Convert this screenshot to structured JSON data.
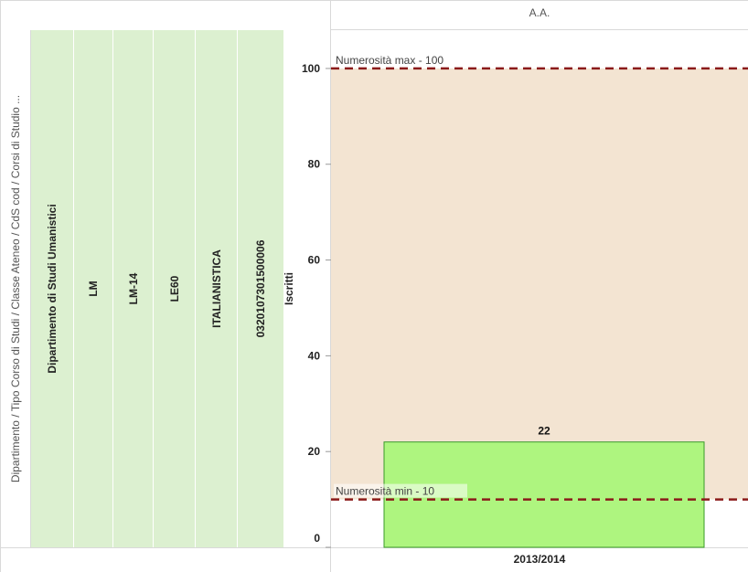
{
  "header": {
    "column_title": "A.A.",
    "row_dimensions_title": "Dipartimento  /  Tipo Corso di Studi  /  Classe Ateneo  /  CdS cod  /  Corsi di Studio ..."
  },
  "dimensions": [
    "Dipartimento di Studi Umanistici",
    "LM",
    "LM-14",
    "LE60",
    "ITALIANISTICA",
    "0320107301500006"
  ],
  "chart_data": {
    "type": "bar",
    "categories": [
      "2013/2014"
    ],
    "values": [
      22
    ],
    "ylabel": "Iscritti",
    "ylim": [
      0,
      108
    ],
    "yticks": [
      0,
      20,
      40,
      60,
      80,
      100
    ],
    "reference_lines": [
      {
        "label": "Numerosità max - 100",
        "value": 100
      },
      {
        "label": "Numerosità min - 10",
        "value": 10
      }
    ],
    "reference_band": [
      10,
      100
    ],
    "colors": {
      "bar_fill": "#aef57f",
      "bar_stroke": "#3a9a2a",
      "band_fill": "#f3e4d2",
      "reference_line": "#8b1a1a"
    }
  }
}
